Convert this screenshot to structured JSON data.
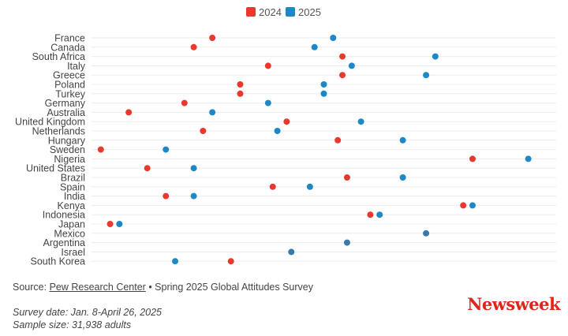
{
  "chart_data": {
    "type": "scatter",
    "legend_position": "top-center",
    "series": [
      {
        "name": "2024",
        "color": "#e8392f"
      },
      {
        "name": "2025",
        "color": "#1e88c7"
      }
    ],
    "categories": [
      "France",
      "Canada",
      "South Africa",
      "Italy",
      "Greece",
      "Poland",
      "Turkey",
      "Germany",
      "Australia",
      "United Kingdom",
      "Netherlands",
      "Hungary",
      "Sweden",
      "Nigeria",
      "United States",
      "Brazil",
      "Spain",
      "India",
      "Kenya",
      "Indonesia",
      "Japan",
      "Mexico",
      "Argentina",
      "Israel",
      "South Korea"
    ],
    "values_2024": [
      26,
      22,
      54,
      38,
      54,
      32,
      32,
      20,
      8,
      42,
      24,
      53,
      2,
      82,
      12,
      55,
      39,
      16,
      80,
      60,
      4,
      null,
      null,
      null,
      30
    ],
    "values_2025": [
      52,
      48,
      74,
      56,
      72,
      50,
      50,
      38,
      26,
      58,
      40,
      67,
      16,
      94,
      22,
      67,
      47,
      22,
      82,
      62,
      6,
      72,
      55,
      43,
      18
    ],
    "overlap_color": "#3a79a8",
    "grid": true,
    "x_axis_labels": false
  },
  "footer": {
    "source_prefix": "Source: ",
    "source_link": "Pew Research Center",
    "source_suffix": " • Spring 2025 Global Attitudes Survey",
    "survey_date": "Survey date: Jan. 8-April 26, 2025",
    "sample_size": "Sample size: 31,938 adults"
  },
  "brand": "Newsweek"
}
